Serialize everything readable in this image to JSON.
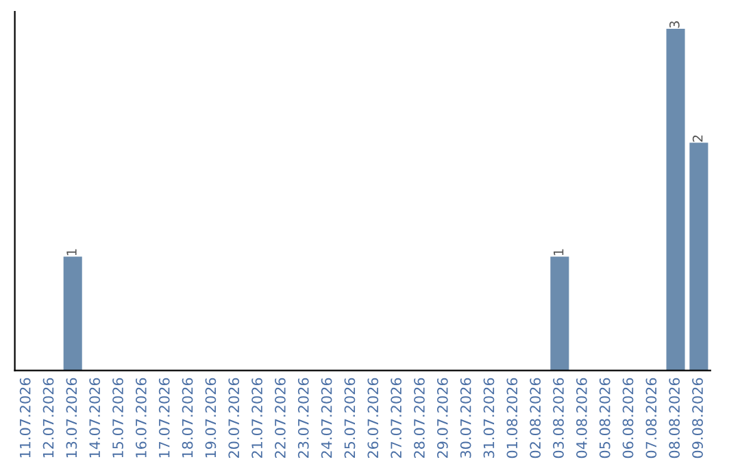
{
  "chart_data": {
    "type": "bar",
    "categories": [
      "11.07.2026",
      "12.07.2026",
      "13.07.2026",
      "14.07.2026",
      "15.07.2026",
      "16.07.2026",
      "17.07.2026",
      "18.07.2026",
      "19.07.2026",
      "20.07.2026",
      "21.07.2026",
      "22.07.2026",
      "23.07.2026",
      "24.07.2026",
      "25.07.2026",
      "26.07.2026",
      "27.07.2026",
      "28.07.2026",
      "29.07.2026",
      "30.07.2026",
      "31.07.2026",
      "01.08.2026",
      "02.08.2026",
      "03.08.2026",
      "04.08.2026",
      "05.08.2026",
      "06.08.2026",
      "07.08.2026",
      "08.08.2026",
      "09.08.2026"
    ],
    "values": [
      0,
      0,
      1,
      0,
      0,
      0,
      0,
      0,
      0,
      0,
      0,
      0,
      0,
      0,
      0,
      0,
      0,
      0,
      0,
      0,
      0,
      0,
      0,
      1,
      0,
      0,
      0,
      0,
      3,
      2
    ],
    "value_labels": [
      null,
      null,
      "1",
      null,
      null,
      null,
      null,
      null,
      null,
      null,
      null,
      null,
      null,
      null,
      null,
      null,
      null,
      null,
      null,
      null,
      null,
      null,
      null,
      "1",
      null,
      null,
      null,
      null,
      "3",
      "2"
    ],
    "color": "#6b8cae",
    "tick_labels": "x",
    "grid": false,
    "legend": false
  }
}
